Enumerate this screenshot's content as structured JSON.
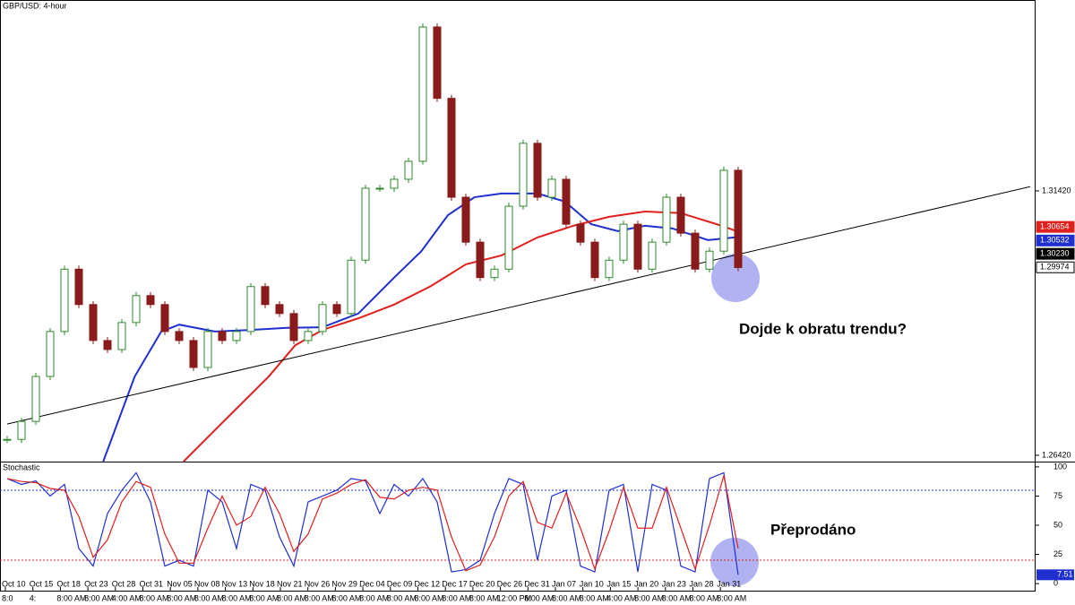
{
  "chart_data": {
    "type": "candlestick",
    "title": "GBP/USD: 4-hour",
    "xlim": [
      -0.5,
      71.69
    ],
    "ylim": [
      1.263,
      1.3503
    ],
    "yticks": [
      {
        "value": 1.3142,
        "label": "1.31420"
      },
      {
        "value": 1.2642,
        "label": "1.26420"
      }
    ],
    "close": [
      1.2672,
      1.2706,
      1.2791,
      1.2876,
      1.2994,
      1.2927,
      1.2859,
      1.2842,
      1.2893,
      1.2944,
      1.2927,
      1.2876,
      1.2859,
      1.2808,
      1.2876,
      1.2859,
      1.2876,
      1.2961,
      1.2927,
      1.291,
      1.2859,
      1.2876,
      1.2927,
      1.291,
      1.3011,
      1.3147,
      1.3147,
      1.3164,
      1.3198,
      1.3452,
      1.3317,
      1.313,
      1.3045,
      1.2978,
      1.2994,
      1.3113,
      1.3232,
      1.313,
      1.3164,
      1.3079,
      1.3045,
      1.2978,
      1.3011,
      1.3079,
      1.2994,
      1.3045,
      1.313,
      1.3062,
      1.2994,
      1.3028,
      1.3181,
      1.2997
    ],
    "up_color": "#2e8b2e",
    "down_color": "#8b1a1a",
    "lines": [
      {
        "color": "#1f2fd0",
        "x": [
          6.7,
          8.9,
          10.75,
          12,
          14.5,
          17,
          19.5,
          22,
          24.5,
          27,
          28.9,
          30.75,
          32.6,
          34.5,
          37,
          38.9,
          40.75,
          42.6,
          44.5,
          46.4,
          48.9,
          50.75
        ],
        "values": [
          1.263,
          1.2791,
          1.2876,
          1.2889,
          1.2876,
          1.2879,
          1.2883,
          1.2884,
          1.291,
          1.2978,
          1.3028,
          1.3096,
          1.313,
          1.3137,
          1.3137,
          1.3122,
          1.3079,
          1.3066,
          1.3076,
          1.3071,
          1.3049,
          1.3054
        ]
      },
      {
        "color": "#e0201c",
        "x": [
          12.3,
          15.1,
          18.25,
          20.1,
          22,
          24.5,
          27,
          29.5,
          32,
          34.5,
          37,
          39.5,
          42,
          44.5,
          47,
          49.5,
          50.9
        ],
        "values": [
          1.263,
          1.2706,
          1.2791,
          1.285,
          1.2879,
          1.2901,
          1.2927,
          1.2961,
          1.3003,
          1.302,
          1.3054,
          1.3076,
          1.3093,
          1.3103,
          1.31,
          1.3079,
          1.3066
        ]
      },
      {
        "color": "#000000",
        "x": [
          0,
          71.375
        ],
        "values": [
          1.2701,
          1.315
        ]
      }
    ],
    "price_labels": [
      {
        "value": 1.30654,
        "color": "#e0201c"
      },
      {
        "value": 1.30532,
        "color": "#1f2fd0"
      },
      {
        "value": 1.3023,
        "label": "1.30230",
        "color": "#000000"
      },
      {
        "value": 1.29974,
        "color": "#ffffff"
      }
    ],
    "annotations": [
      "Dojde k obratu trendu?",
      "Přeprodáno"
    ],
    "date_labels": [
      "Oct 10",
      "Oct 15",
      "Oct 18",
      "Oct 23",
      "Oct 28",
      "Oct 31",
      "Nov 05",
      "Nov 08",
      "Nov 13",
      "Nov 18",
      "Nov 21",
      "Nov 26",
      "Nov 29",
      "Dec 04",
      "Dec 09",
      "Dec 12",
      "Dec 17",
      "Dec 20",
      "Dec 26",
      "Dec 31",
      "Jan 07",
      "Jan 10",
      "Jan 15",
      "Jan 20",
      "Jan 23",
      "Jan 28",
      "Jan 31"
    ],
    "time_labels": [
      "8:0",
      "4:",
      "8:00 AM",
      "8:00 AM",
      "4:00 AM",
      "8:00 AM",
      "8:00 AM",
      "8:00 AM",
      "8:00 AM",
      "8:00 AM",
      "8:00 AM",
      "8:00 AM",
      "8:00 AM",
      "8:00 AM",
      "8:00 AM",
      "8:00 AM",
      "8:00 AM",
      "8:00 AM",
      "12:00 PM",
      "8:00 AM",
      "8:00 AM",
      "8:00 AM",
      "4:00 AM",
      "8:00 AM",
      "8:00 AM",
      "8:00 AM",
      "8:00 AM"
    ],
    "oscillator": {
      "title": "Stochastic",
      "ylim": [
        -3,
        103
      ],
      "yticks": [
        0,
        25,
        50,
        75,
        100
      ],
      "levels": [
        {
          "value": 80,
          "color": "#1f2fd0"
        },
        {
          "value": 20,
          "color": "#e0201c"
        }
      ],
      "series": [
        {
          "color": "#1f2fd0",
          "values": [
            90,
            85,
            88,
            75,
            85,
            30,
            15,
            60,
            80,
            95,
            70,
            15,
            20,
            15,
            80,
            70,
            30,
            85,
            80,
            40,
            15,
            70,
            75,
            80,
            90,
            88,
            60,
            85,
            75,
            90,
            70,
            10,
            12,
            20,
            60,
            90,
            85,
            20,
            75,
            80,
            15,
            10,
            80,
            85,
            10,
            85,
            80,
            15,
            10,
            90,
            95,
            7.51
          ]
        },
        {
          "color": "#e0201c",
          "values": [
            90,
            87.5,
            86.5,
            81.5,
            80,
            57.5,
            22.5,
            37.5,
            70,
            87.5,
            82.5,
            42.5,
            17.5,
            17.5,
            47.5,
            75,
            50,
            57.5,
            82.5,
            60,
            27.5,
            42.5,
            72.5,
            77.5,
            85,
            89,
            74,
            72.5,
            80,
            82.5,
            80,
            40,
            11,
            16,
            40,
            75,
            87.5,
            52.5,
            47.5,
            77.5,
            47.5,
            12.5,
            45,
            82.5,
            47.5,
            47.5,
            82.5,
            47.5,
            12.5,
            50,
            92.5,
            30
          ]
        }
      ]
    }
  }
}
